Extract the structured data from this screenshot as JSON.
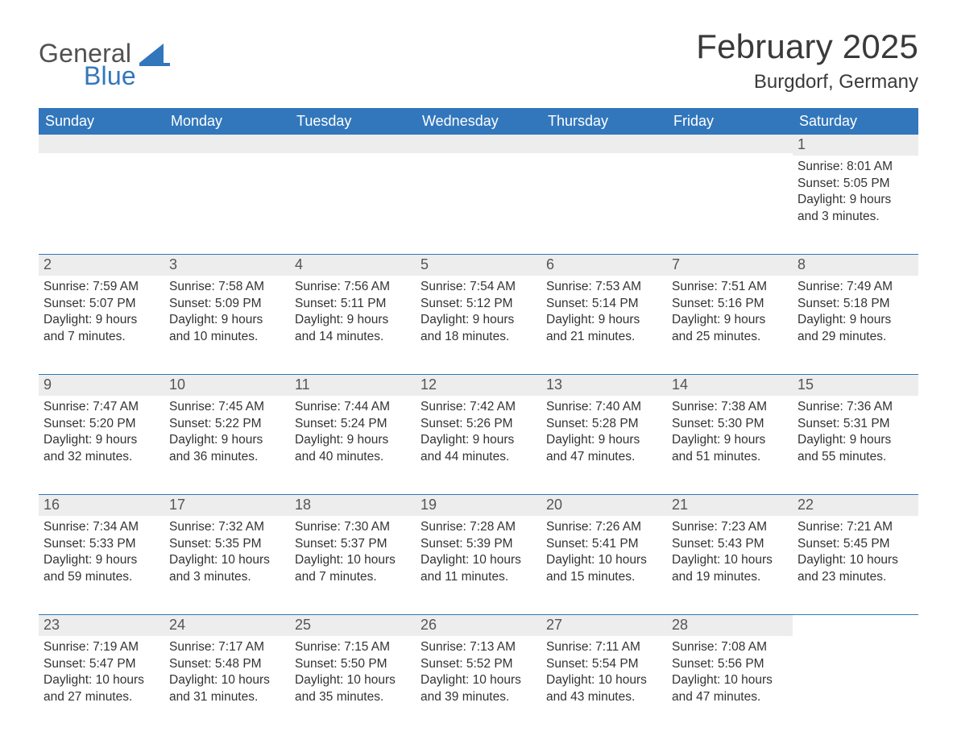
{
  "brand": {
    "general": "General",
    "blue": "Blue",
    "logo_colors": {
      "general": "#515151",
      "blue": "#3277bc",
      "mark": "#3277bc"
    }
  },
  "header": {
    "month_title": "February 2025",
    "location": "Burgdorf, Germany"
  },
  "style": {
    "header_bg": "#3277bc",
    "header_text": "#ffffff",
    "daynum_bg": "#ededed",
    "daynum_text": "#555555",
    "body_text": "#333333",
    "row_divider": "#3277bc",
    "page_bg": "#ffffff",
    "month_title_fontsize": 42,
    "location_fontsize": 24,
    "weekday_fontsize": 18,
    "daynum_fontsize": 18,
    "body_fontsize": 15.5
  },
  "weekdays": [
    "Sunday",
    "Monday",
    "Tuesday",
    "Wednesday",
    "Thursday",
    "Friday",
    "Saturday"
  ],
  "labels": {
    "sunrise": "Sunrise",
    "sunset": "Sunset",
    "daylight": "Daylight"
  },
  "weeks": [
    [
      null,
      null,
      null,
      null,
      null,
      null,
      {
        "n": "1",
        "sunrise": "8:01 AM",
        "sunset": "5:05 PM",
        "daylight": "9 hours and 3 minutes."
      }
    ],
    [
      {
        "n": "2",
        "sunrise": "7:59 AM",
        "sunset": "5:07 PM",
        "daylight": "9 hours and 7 minutes."
      },
      {
        "n": "3",
        "sunrise": "7:58 AM",
        "sunset": "5:09 PM",
        "daylight": "9 hours and 10 minutes."
      },
      {
        "n": "4",
        "sunrise": "7:56 AM",
        "sunset": "5:11 PM",
        "daylight": "9 hours and 14 minutes."
      },
      {
        "n": "5",
        "sunrise": "7:54 AM",
        "sunset": "5:12 PM",
        "daylight": "9 hours and 18 minutes."
      },
      {
        "n": "6",
        "sunrise": "7:53 AM",
        "sunset": "5:14 PM",
        "daylight": "9 hours and 21 minutes."
      },
      {
        "n": "7",
        "sunrise": "7:51 AM",
        "sunset": "5:16 PM",
        "daylight": "9 hours and 25 minutes."
      },
      {
        "n": "8",
        "sunrise": "7:49 AM",
        "sunset": "5:18 PM",
        "daylight": "9 hours and 29 minutes."
      }
    ],
    [
      {
        "n": "9",
        "sunrise": "7:47 AM",
        "sunset": "5:20 PM",
        "daylight": "9 hours and 32 minutes."
      },
      {
        "n": "10",
        "sunrise": "7:45 AM",
        "sunset": "5:22 PM",
        "daylight": "9 hours and 36 minutes."
      },
      {
        "n": "11",
        "sunrise": "7:44 AM",
        "sunset": "5:24 PM",
        "daylight": "9 hours and 40 minutes."
      },
      {
        "n": "12",
        "sunrise": "7:42 AM",
        "sunset": "5:26 PM",
        "daylight": "9 hours and 44 minutes."
      },
      {
        "n": "13",
        "sunrise": "7:40 AM",
        "sunset": "5:28 PM",
        "daylight": "9 hours and 47 minutes."
      },
      {
        "n": "14",
        "sunrise": "7:38 AM",
        "sunset": "5:30 PM",
        "daylight": "9 hours and 51 minutes."
      },
      {
        "n": "15",
        "sunrise": "7:36 AM",
        "sunset": "5:31 PM",
        "daylight": "9 hours and 55 minutes."
      }
    ],
    [
      {
        "n": "16",
        "sunrise": "7:34 AM",
        "sunset": "5:33 PM",
        "daylight": "9 hours and 59 minutes."
      },
      {
        "n": "17",
        "sunrise": "7:32 AM",
        "sunset": "5:35 PM",
        "daylight": "10 hours and 3 minutes."
      },
      {
        "n": "18",
        "sunrise": "7:30 AM",
        "sunset": "5:37 PM",
        "daylight": "10 hours and 7 minutes."
      },
      {
        "n": "19",
        "sunrise": "7:28 AM",
        "sunset": "5:39 PM",
        "daylight": "10 hours and 11 minutes."
      },
      {
        "n": "20",
        "sunrise": "7:26 AM",
        "sunset": "5:41 PM",
        "daylight": "10 hours and 15 minutes."
      },
      {
        "n": "21",
        "sunrise": "7:23 AM",
        "sunset": "5:43 PM",
        "daylight": "10 hours and 19 minutes."
      },
      {
        "n": "22",
        "sunrise": "7:21 AM",
        "sunset": "5:45 PM",
        "daylight": "10 hours and 23 minutes."
      }
    ],
    [
      {
        "n": "23",
        "sunrise": "7:19 AM",
        "sunset": "5:47 PM",
        "daylight": "10 hours and 27 minutes."
      },
      {
        "n": "24",
        "sunrise": "7:17 AM",
        "sunset": "5:48 PM",
        "daylight": "10 hours and 31 minutes."
      },
      {
        "n": "25",
        "sunrise": "7:15 AM",
        "sunset": "5:50 PM",
        "daylight": "10 hours and 35 minutes."
      },
      {
        "n": "26",
        "sunrise": "7:13 AM",
        "sunset": "5:52 PM",
        "daylight": "10 hours and 39 minutes."
      },
      {
        "n": "27",
        "sunrise": "7:11 AM",
        "sunset": "5:54 PM",
        "daylight": "10 hours and 43 minutes."
      },
      {
        "n": "28",
        "sunrise": "7:08 AM",
        "sunset": "5:56 PM",
        "daylight": "10 hours and 47 minutes."
      },
      null
    ]
  ]
}
